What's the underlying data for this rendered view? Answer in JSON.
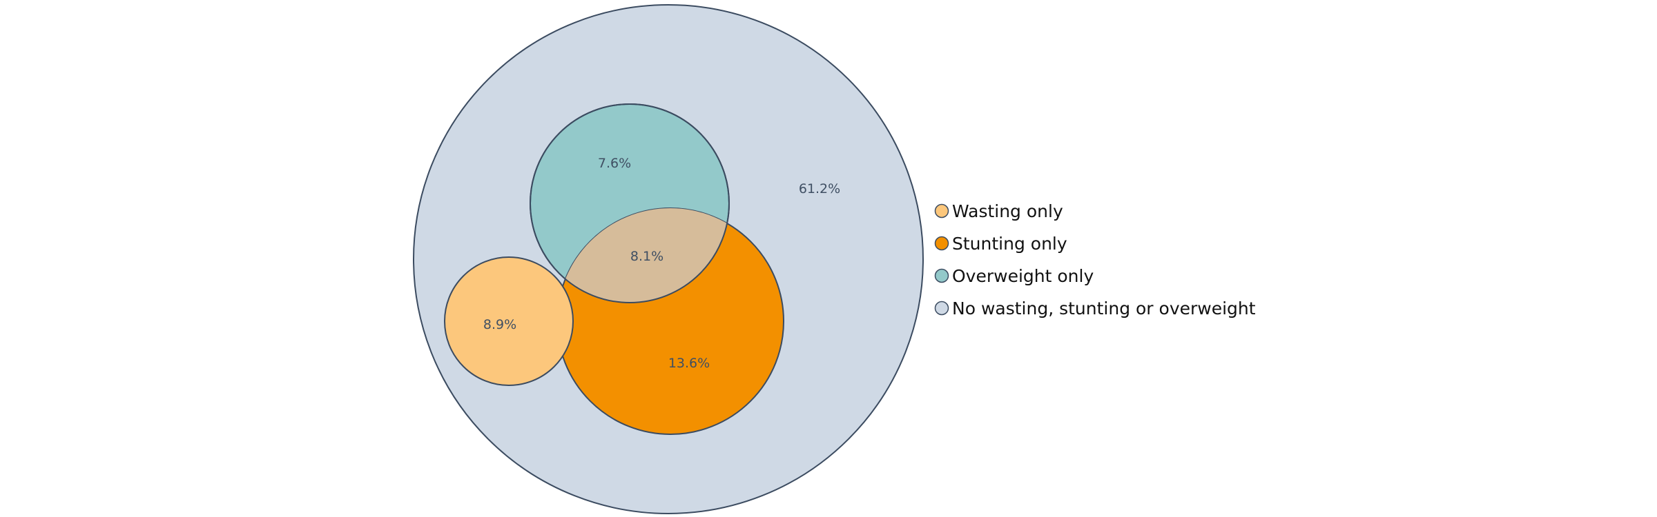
{
  "chart_data": {
    "type": "venn",
    "title": "",
    "outline_color": "#3b4b60",
    "sets": [
      {
        "name": "No wasting, stunting or overweight",
        "color": "#cfd9e5"
      },
      {
        "name": "Overweight only",
        "color": "#93c9ca"
      },
      {
        "name": "Stunting only",
        "color": "#f39000"
      },
      {
        "name": "Wasting only",
        "color": "#fcc77c"
      }
    ],
    "overlap_color": "#d6bc9a",
    "regions": [
      {
        "label": "61.2%",
        "value": 61.2,
        "set": "No wasting, stunting or overweight"
      },
      {
        "label": "7.6%",
        "value": 7.6,
        "set": "Overweight only"
      },
      {
        "label": "8.1%",
        "value": 8.1,
        "set": "Overweight and stunting"
      },
      {
        "label": "8.9%",
        "value": 8.9,
        "set": "Wasting only"
      },
      {
        "label": "13.6%",
        "value": 13.6,
        "set": "Stunting only"
      }
    ],
    "legend": {
      "placement": "right",
      "entries": [
        {
          "label": "Wasting only",
          "color": "#fcc77c"
        },
        {
          "label": "Stunting only",
          "color": "#f39000"
        },
        {
          "label": "Overweight only",
          "color": "#93c9ca"
        },
        {
          "label": "No wasting, stunting or overweight",
          "color": "#cfd9e5"
        }
      ]
    }
  }
}
